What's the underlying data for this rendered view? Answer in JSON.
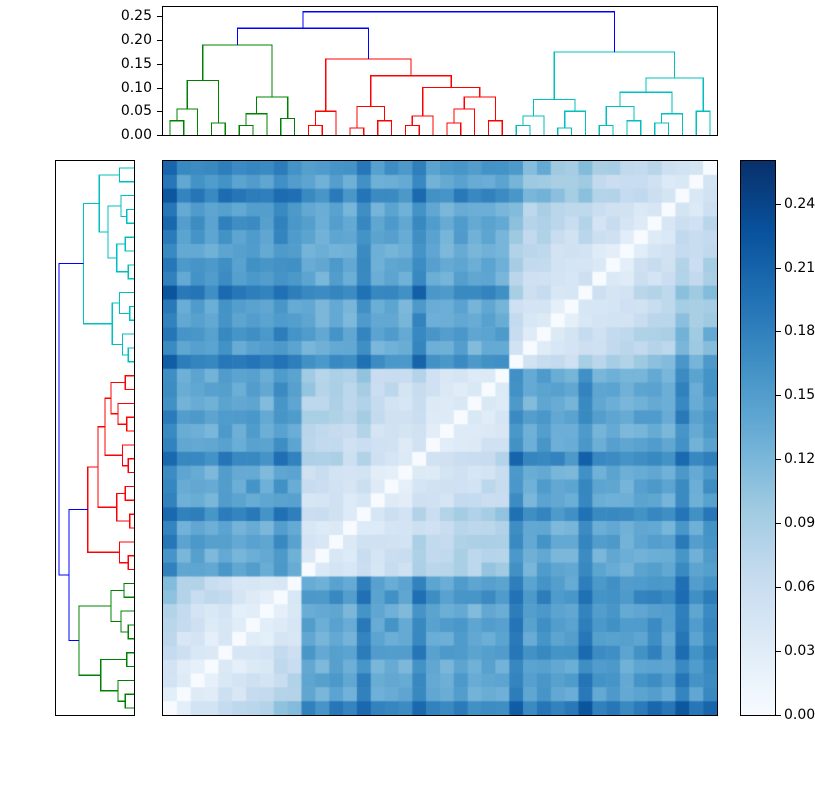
{
  "axes": {
    "dendro_axis_ticks": [
      "0.25",
      "0.20",
      "0.15",
      "0.10",
      "0.05",
      "0.00"
    ],
    "dendro_axis_max": 0.27,
    "colorbar_ticks": [
      "0.24",
      "0.21",
      "0.18",
      "0.15",
      "0.12",
      "0.09",
      "0.06",
      "0.03",
      "0.00"
    ]
  },
  "chart_data": {
    "type": "heatmap",
    "description": "Hierarchically clustered distance matrix: top and left dendrograms with a symmetric Blues heatmap (rows are the reverse order of columns, light diagonal runs bottom-left to top-right) and a vertical colorbar on the right.",
    "n": 40,
    "vmin": 0.0,
    "vmax": 0.26,
    "colormap": "Blues",
    "colormap_stops": [
      [
        0.0,
        "#f7fbff"
      ],
      [
        0.125,
        "#deebf7"
      ],
      [
        0.25,
        "#c6dbef"
      ],
      [
        0.375,
        "#9ecae1"
      ],
      [
        0.5,
        "#6baed6"
      ],
      [
        0.625,
        "#4292c6"
      ],
      [
        0.75,
        "#2171b5"
      ],
      [
        0.875,
        "#08519c"
      ],
      [
        1.0,
        "#08306b"
      ]
    ],
    "clusters": [
      {
        "name": "green",
        "color": "#008000",
        "leaves": [
          0,
          10
        ]
      },
      {
        "name": "red",
        "color": "#ff0000",
        "leaves": [
          10,
          25
        ]
      },
      {
        "name": "cyan",
        "color": "#00bfbf",
        "leaves": [
          25,
          40
        ]
      }
    ],
    "link_top_color": "#0000ff",
    "row_order": "reverse_of_columns",
    "block_base": [
      [
        0.065,
        0.15,
        0.16
      ],
      [
        0.15,
        0.075,
        0.145
      ],
      [
        0.16,
        0.145,
        0.085
      ]
    ],
    "leaf_spread": [
      0.85,
      0.3,
      0.4,
      0.25,
      0.5,
      0.3,
      0.45,
      0.25,
      0.6,
      0.35,
      0.35,
      0.25,
      0.45,
      0.3,
      0.85,
      0.3,
      0.4,
      0.25,
      0.9,
      0.35,
      0.3,
      0.5,
      0.25,
      0.4,
      0.3,
      0.8,
      0.3,
      0.55,
      0.3,
      0.25,
      0.85,
      0.35,
      0.45,
      0.25,
      0.35,
      0.5,
      0.3,
      0.9,
      0.35,
      0.65
    ],
    "dendrogram": [
      0.26,
      "#0000ff",
      [
        0.225,
        "#0000ff",
        [
          0.19,
          "#008000",
          [
            0.115,
            "#008000",
            [
              0.055,
              "#008000",
              [
                0.03,
                "#008000",
                0,
                1
              ],
              2
            ],
            [
              0.025,
              "#008000",
              3,
              4
            ]
          ],
          [
            0.08,
            "#008000",
            [
              0.045,
              "#008000",
              [
                0.02,
                "#008000",
                5,
                6
              ],
              7
            ],
            [
              0.035,
              "#008000",
              8,
              9
            ]
          ]
        ],
        [
          0.16,
          "#ff0000",
          [
            0.05,
            "#ff0000",
            [
              0.02,
              "#ff0000",
              10,
              11
            ],
            12
          ],
          [
            0.125,
            "#ff0000",
            [
              0.06,
              "#ff0000",
              [
                0.015,
                "#ff0000",
                13,
                14
              ],
              [
                0.03,
                "#ff0000",
                15,
                16
              ]
            ],
            [
              0.1,
              "#ff0000",
              [
                0.04,
                "#ff0000",
                [
                  0.02,
                  "#ff0000",
                  17,
                  18
                ],
                19
              ],
              [
                0.08,
                "#ff0000",
                [
                  0.055,
                  "#ff0000",
                  [
                    0.025,
                    "#ff0000",
                    20,
                    21
                  ],
                  22
                ],
                [
                  0.03,
                  "#ff0000",
                  23,
                  24
                ]
              ]
            ]
          ]
        ]
      ],
      [
        0.175,
        "#00bfbf",
        [
          0.075,
          "#00bfbf",
          [
            0.04,
            "#00bfbf",
            [
              0.02,
              "#00bfbf",
              25,
              26
            ],
            27
          ],
          [
            0.05,
            "#00bfbf",
            [
              0.015,
              "#00bfbf",
              28,
              29
            ],
            30
          ]
        ],
        [
          0.12,
          "#00bfbf",
          [
            0.09,
            "#00bfbf",
            [
              0.06,
              "#00bfbf",
              [
                0.02,
                "#00bfbf",
                31,
                32
              ],
              [
                0.03,
                "#00bfbf",
                33,
                34
              ]
            ],
            [
              0.045,
              "#00bfbf",
              [
                0.025,
                "#00bfbf",
                35,
                36
              ],
              37
            ]
          ],
          [
            0.05,
            "#00bfbf",
            38,
            39
          ]
        ]
      ]
    ]
  }
}
